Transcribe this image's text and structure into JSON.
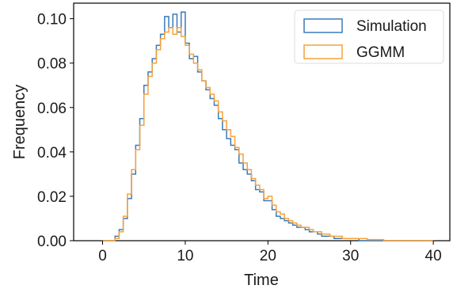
{
  "chart_data": {
    "type": "histogram",
    "xlabel": "Time",
    "ylabel": "Frequency",
    "xlim": [
      -3.5,
      42
    ],
    "ylim": [
      0,
      0.107
    ],
    "xticks": [
      0,
      10,
      20,
      30,
      40
    ],
    "yticks": [
      0.0,
      0.02,
      0.04,
      0.06,
      0.08,
      0.1
    ],
    "ytick_labels": [
      "0.00",
      "0.02",
      "0.04",
      "0.06",
      "0.08",
      "0.10"
    ],
    "legend_position": "upper-right",
    "bin_edges": [
      0,
      0.5,
      1,
      1.5,
      2,
      2.5,
      3,
      3.5,
      4,
      4.5,
      5,
      5.5,
      6,
      6.5,
      7,
      7.5,
      8,
      8.5,
      9,
      9.5,
      10,
      10.5,
      11,
      11.5,
      12,
      12.5,
      13,
      13.5,
      14,
      14.5,
      15,
      15.5,
      16,
      16.5,
      17,
      17.5,
      18,
      18.5,
      19,
      19.5,
      20,
      20.5,
      21,
      21.5,
      22,
      22.5,
      23,
      23.5,
      24,
      24.5,
      25,
      25.5,
      26,
      26.5,
      27,
      27.5,
      28,
      28.5,
      29,
      29.5,
      30,
      30.5,
      31,
      31.5,
      32,
      32.5,
      33,
      33.5,
      34,
      34.5,
      35,
      35.5,
      36,
      36.5,
      37,
      37.5,
      38,
      38.5,
      39,
      39.5,
      40
    ],
    "series": [
      {
        "name": "Simulation",
        "color": "#3a7bb8",
        "values": [
          0,
          0,
          0,
          0.002,
          0.005,
          0.01,
          0.019,
          0.03,
          0.043,
          0.055,
          0.07,
          0.076,
          0.082,
          0.088,
          0.093,
          0.101,
          0.096,
          0.102,
          0.094,
          0.103,
          0.089,
          0.082,
          0.083,
          0.076,
          0.072,
          0.068,
          0.064,
          0.061,
          0.055,
          0.05,
          0.046,
          0.043,
          0.041,
          0.035,
          0.032,
          0.03,
          0.027,
          0.023,
          0.022,
          0.018,
          0.018,
          0.014,
          0.011,
          0.01,
          0.009,
          0.008,
          0.007,
          0.006,
          0.006,
          0.005,
          0.004,
          0.004,
          0.003,
          0.002,
          0.002,
          0.002,
          0.001,
          0.001,
          0.001,
          0.001,
          0.001,
          0.001,
          0,
          0,
          0,
          0,
          0,
          0,
          0,
          0,
          0,
          0,
          0,
          0,
          0,
          0,
          0,
          0,
          0,
          0
        ]
      },
      {
        "name": "GGMM",
        "color": "#f5a13c",
        "values": [
          0,
          0,
          0,
          0.001,
          0.004,
          0.011,
          0.021,
          0.032,
          0.041,
          0.052,
          0.066,
          0.074,
          0.08,
          0.086,
          0.091,
          0.094,
          0.096,
          0.093,
          0.096,
          0.092,
          0.088,
          0.084,
          0.08,
          0.077,
          0.072,
          0.069,
          0.066,
          0.063,
          0.058,
          0.054,
          0.05,
          0.047,
          0.042,
          0.039,
          0.035,
          0.032,
          0.028,
          0.025,
          0.023,
          0.019,
          0.02,
          0.016,
          0.013,
          0.012,
          0.01,
          0.009,
          0.008,
          0.007,
          0.006,
          0.006,
          0.005,
          0.004,
          0.004,
          0.003,
          0.003,
          0.002,
          0.002,
          0.002,
          0.001,
          0.001,
          0.001,
          0.001,
          0.001,
          0.001,
          0.0005,
          0.0005,
          0.0005,
          0.0005,
          0,
          0,
          0,
          0,
          0,
          0,
          0,
          0,
          0,
          0,
          0,
          0
        ]
      }
    ]
  }
}
